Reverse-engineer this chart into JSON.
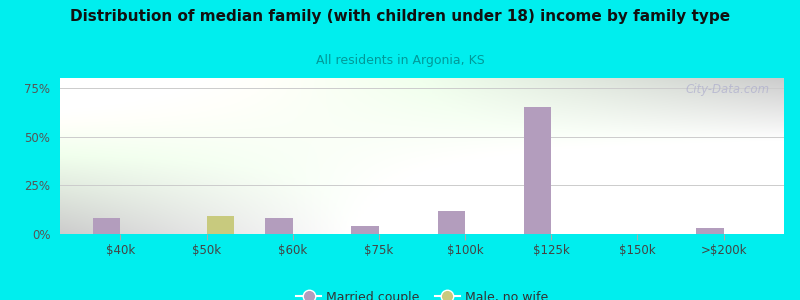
{
  "title": "Distribution of median family (with children under 18) income by family type",
  "subtitle": "All residents in Argonia, KS",
  "title_color": "#111111",
  "subtitle_color": "#009999",
  "background_color": "#00EEEE",
  "plot_bg_top_left": "#c8e6c0",
  "plot_bg_bottom_right": "#eef8f8",
  "categories": [
    "$40k",
    "$50k",
    "$60k",
    "$75k",
    "$100k",
    "$125k",
    "$150k",
    ">$200k"
  ],
  "married_couple": [
    8,
    0,
    8,
    4,
    12,
    65,
    0,
    3
  ],
  "male_no_wife": [
    0,
    9,
    0,
    0,
    0,
    0,
    0,
    0
  ],
  "married_color": "#b39dbd",
  "male_color": "#c8ca7e",
  "bar_width": 0.32,
  "ylim": [
    0,
    80
  ],
  "yticks": [
    0,
    25,
    50,
    75
  ],
  "ytick_labels": [
    "0%",
    "25%",
    "50%",
    "75%"
  ],
  "grid_color": "#cccccc",
  "watermark": "City-Data.com",
  "legend_labels": [
    "Married couple",
    "Male, no wife"
  ]
}
